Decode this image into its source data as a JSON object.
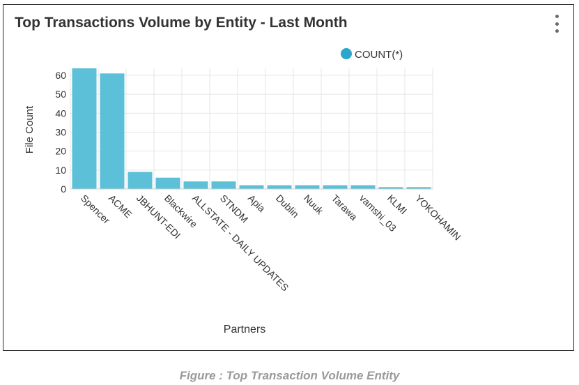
{
  "card": {
    "title": "Top Transactions Volume by Entity - Last Month",
    "menu_icon": "kebab-menu-icon"
  },
  "caption": "Figure : Top Transaction Volume Entity",
  "colors": {
    "bar": "#5bc0d8",
    "legend_marker": "#2aa7c9",
    "grid": "#e6e6e6",
    "text": "#333333"
  },
  "chart_data": {
    "type": "bar",
    "title": "",
    "xlabel": "Partners",
    "ylabel": "File Count",
    "ylim": [
      0,
      60
    ],
    "yticks": [
      0,
      10,
      20,
      30,
      40,
      50,
      60
    ],
    "grid": true,
    "legend_position": "top-right",
    "categories": [
      "Spencer",
      "ACME",
      "JBHUNT-EDI",
      "Blackwire",
      "ALLSTATE - DAILY UPDATES",
      "STNDM",
      "Apia",
      "Dublin",
      "Nuuk",
      "Tarawa",
      "vamshi_03",
      "KLMI",
      "YOKOHAMIN"
    ],
    "series": [
      {
        "name": "COUNT(*)",
        "values": [
          64,
          61,
          9,
          6,
          4,
          4,
          2,
          2,
          2,
          2,
          2,
          1,
          1
        ]
      }
    ]
  }
}
